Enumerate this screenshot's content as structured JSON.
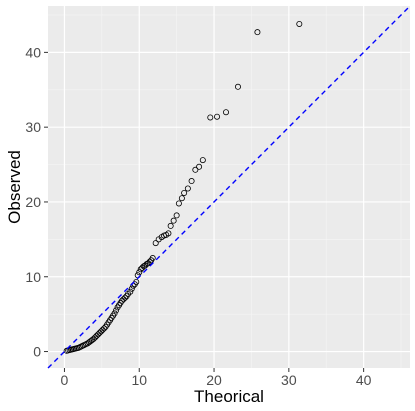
{
  "chart_data": {
    "type": "scatter",
    "title": "",
    "xlabel": "Theorical",
    "ylabel": "Observed",
    "xlim": [
      -2.2,
      46.2
    ],
    "ylim": [
      -2.2,
      46.2
    ],
    "x_ticks": [
      0,
      10,
      20,
      30,
      40
    ],
    "y_ticks": [
      0,
      10,
      20,
      30,
      40
    ],
    "grid": true,
    "legend": "none",
    "reference_line": {
      "slope": 1,
      "intercept": 0,
      "style": "dashed",
      "color": "#0000ff"
    },
    "point_style": {
      "shape": "open-circle",
      "color": "#000000"
    },
    "points": {
      "x": [
        0.3,
        0.5,
        0.7,
        0.9,
        1.1,
        1.3,
        1.5,
        1.7,
        1.9,
        2.1,
        2.3,
        2.5,
        2.7,
        2.9,
        3.1,
        3.3,
        3.5,
        3.7,
        3.9,
        4.1,
        4.3,
        4.5,
        4.7,
        4.9,
        5.1,
        5.3,
        5.5,
        5.7,
        5.9,
        6.1,
        6.3,
        6.5,
        6.7,
        6.9,
        7.1,
        7.3,
        7.5,
        7.7,
        7.9,
        8.1,
        8.3,
        8.5,
        8.8,
        9.0,
        9.2,
        9.4,
        9.6,
        9.8,
        10.0,
        10.2,
        10.4,
        10.6,
        10.8,
        11.0,
        11.2,
        11.4,
        11.6,
        11.8,
        12.2,
        12.6,
        13.0,
        13.3,
        13.6,
        13.9,
        14.2,
        14.6,
        15.0,
        15.3,
        15.7,
        16.0,
        16.5,
        17.0,
        17.5,
        18.0,
        18.5,
        19.5,
        20.4,
        21.6,
        23.2,
        25.8,
        31.4
      ],
      "y": [
        0.1,
        0.15,
        0.2,
        0.25,
        0.3,
        0.35,
        0.4,
        0.45,
        0.5,
        0.6,
        0.7,
        0.8,
        0.9,
        1.0,
        1.1,
        1.25,
        1.4,
        1.55,
        1.7,
        1.9,
        2.1,
        2.3,
        2.5,
        2.7,
        2.9,
        3.1,
        3.3,
        3.6,
        3.9,
        4.2,
        4.5,
        4.8,
        5.1,
        5.5,
        5.9,
        6.2,
        6.5,
        6.8,
        7.0,
        7.2,
        7.4,
        7.7,
        8.0,
        8.4,
        8.8,
        9.0,
        9.3,
        10.2,
        10.6,
        11.0,
        11.2,
        11.4,
        11.5,
        11.7,
        11.8,
        12.0,
        12.2,
        12.5,
        14.5,
        15.0,
        15.3,
        15.5,
        15.6,
        15.8,
        16.8,
        17.5,
        18.2,
        19.8,
        20.5,
        21.2,
        21.8,
        22.8,
        24.3,
        24.7,
        25.6,
        31.3,
        31.4,
        32.0,
        35.4,
        42.7,
        43.8
      ]
    }
  }
}
